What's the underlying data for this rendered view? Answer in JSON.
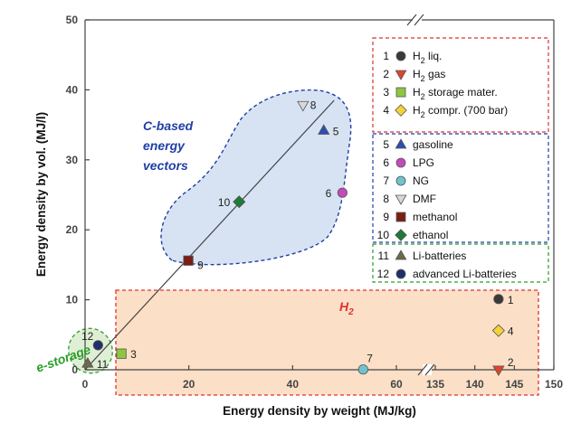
{
  "chart_data": {
    "type": "scatter",
    "xlabel": "Energy density by weight (MJ/kg)",
    "ylabel": "Energy density by vol. (MJ/l)",
    "x_ticks": [
      "0",
      "20",
      "40",
      "60",
      "135",
      "140",
      "145",
      "150"
    ],
    "y_ticks": [
      "0",
      "10",
      "20",
      "30",
      "40",
      "50"
    ],
    "xlim": [
      0,
      150
    ],
    "ylim": [
      0,
      50
    ],
    "x_axis_break": [
      60,
      135
    ],
    "grid": false,
    "legend_position": "right",
    "annotations": {
      "c_based_line1": "C-based",
      "c_based_line2": "energy",
      "c_based_line3": "vectors",
      "h2_main": "H",
      "h2_sub": "2",
      "e_storage": "e-storage"
    },
    "colors": {
      "c_based": "#1f3fa6",
      "h2": "#e03030",
      "e_storage": "#2a9d2a"
    },
    "series": [
      {
        "id": "1",
        "name_main": "H",
        "name_sub": "2",
        "name_rest": " liq.",
        "x": 143,
        "y": 10.1,
        "marker": "circle",
        "color": "#3a3a3a"
      },
      {
        "id": "2",
        "name_main": "H",
        "name_sub": "2",
        "name_rest": " gas",
        "x": 143,
        "y": 0,
        "marker": "triangle-down",
        "color": "#e0452b"
      },
      {
        "id": "3",
        "name_main": "H",
        "name_sub": "2",
        "name_rest": " storage mater.",
        "x": 7,
        "y": 2.3,
        "marker": "square",
        "color": "#8dc63f"
      },
      {
        "id": "4",
        "name_main": "H",
        "name_sub": "2",
        "name_rest": " compr. (700 bar)",
        "x": 143,
        "y": 5.6,
        "marker": "diamond",
        "color": "#f3d23a"
      },
      {
        "id": "5",
        "name_main": "gasoline",
        "x": 46,
        "y": 34.2,
        "marker": "triangle-up",
        "color": "#2a4fb0"
      },
      {
        "id": "6",
        "name_main": "LPG",
        "x": 49.6,
        "y": 25.3,
        "marker": "circle",
        "color": "#c34ab8"
      },
      {
        "id": "7",
        "name_main": "NG",
        "x": 53.6,
        "y": 0.04,
        "marker": "circle",
        "color": "#6fc3cf"
      },
      {
        "id": "8",
        "name_main": "DMF",
        "x": 42,
        "y": 37.8,
        "marker": "triangle-down",
        "color": "#d8d8d8"
      },
      {
        "id": "9",
        "name_main": "methanol",
        "x": 19.9,
        "y": 15.6,
        "marker": "square",
        "color": "#7a1e16"
      },
      {
        "id": "10",
        "name_main": "ethanol",
        "x": 29.7,
        "y": 24,
        "marker": "diamond",
        "color": "#1f7a3a"
      },
      {
        "id": "11",
        "name_main": "Li-batteries",
        "x": 0.5,
        "y": 0.9,
        "marker": "triangle-up",
        "color": "#6b6b4a"
      },
      {
        "id": "12",
        "name_main": "advanced Li-batteries",
        "x": 2.5,
        "y": 3.5,
        "marker": "circle",
        "color": "#1f2f6b"
      }
    ],
    "trend_line": {
      "from": [
        0,
        0
      ],
      "to": [
        48,
        38.5
      ]
    }
  }
}
